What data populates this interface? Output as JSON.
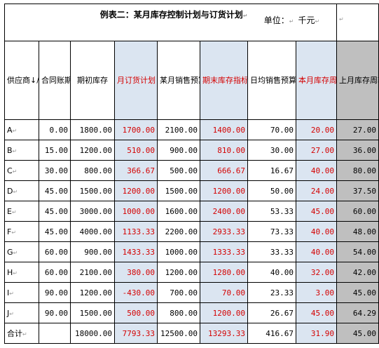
{
  "header": {
    "title": "例表二：某月库存控制计划与订货计划",
    "unit_label": "单位：",
    "unit_value": "千元"
  },
  "columns": [
    {
      "label": "供应商↓/品类"
    },
    {
      "label": "合同账期"
    },
    {
      "label": "期初库存"
    },
    {
      "label": "月订货计划"
    },
    {
      "label": "某月销售预算额"
    },
    {
      "label": "期末库存指标"
    },
    {
      "label": "日均销售预算"
    },
    {
      "label": "本月库存周转天数目标"
    },
    {
      "label": "上月库存周转天数"
    }
  ],
  "rows": [
    {
      "supplier": "A",
      "term": "0.00",
      "opening": "1800.00",
      "order": "1700.00",
      "sales": "2100.00",
      "closing": "1400.00",
      "daily": "70.00",
      "target_days": "20.00",
      "last_days": "27.00"
    },
    {
      "supplier": "B",
      "term": "15.00",
      "opening": "1200.00",
      "order": "510.00",
      "sales": "900.00",
      "closing": "810.00",
      "daily": "30.00",
      "target_days": "27.00",
      "last_days": "36.00"
    },
    {
      "supplier": "C",
      "term": "30.00",
      "opening": "800.00",
      "order": "366.67",
      "sales": "500.00",
      "closing": "666.67",
      "daily": "16.67",
      "target_days": "40.00",
      "last_days": "80.00"
    },
    {
      "supplier": "D",
      "term": "45.00",
      "opening": "1500.00",
      "order": "1200.00",
      "sales": "1500.00",
      "closing": "1200.00",
      "daily": "50.00",
      "target_days": "24.00",
      "last_days": "37.50"
    },
    {
      "supplier": "E",
      "term": "45.00",
      "opening": "3000.00",
      "order": "1000.00",
      "sales": "1600.00",
      "closing": "2400.00",
      "daily": "53.33",
      "target_days": "45.00",
      "last_days": "60.00"
    },
    {
      "supplier": "F",
      "term": "45.00",
      "opening": "4000.00",
      "order": "1133.33",
      "sales": "2200.00",
      "closing": "2933.33",
      "daily": "73.33",
      "target_days": "40.00",
      "last_days": "48.00"
    },
    {
      "supplier": "G",
      "term": "60.00",
      "opening": "900.00",
      "order": "1433.33",
      "sales": "1000.00",
      "closing": "1333.33",
      "daily": "33.33",
      "target_days": "40.00",
      "last_days": "54.00"
    },
    {
      "supplier": "H",
      "term": "60.00",
      "opening": "2100.00",
      "order": "380.00",
      "sales": "1200.00",
      "closing": "1280.00",
      "daily": "40.00",
      "target_days": "32.00",
      "last_days": "42.00"
    },
    {
      "supplier": "I",
      "term": "90.00",
      "opening": "1200.00",
      "order": "-430.00",
      "sales": "700.00",
      "closing": "70.00",
      "daily": "23.33",
      "target_days": "3.00",
      "last_days": "45.00"
    },
    {
      "supplier": "J",
      "term": "90.00",
      "opening": "1500.00",
      "order": "500.00",
      "sales": "800.00",
      "closing": "1200.00",
      "daily": "26.67",
      "target_days": "45.00",
      "last_days": "64.29"
    }
  ],
  "total": {
    "supplier": "合计",
    "term": "",
    "opening": "18000.00",
    "order": "7793.33",
    "sales": "12500.00",
    "closing": "13293.33",
    "daily": "416.67",
    "target_days": "31.90",
    "last_days": "45.00"
  },
  "colors": {
    "red_text": "#d40000",
    "blue_fill": "#dbe5f1",
    "gray_fill": "#bfbfbf"
  }
}
